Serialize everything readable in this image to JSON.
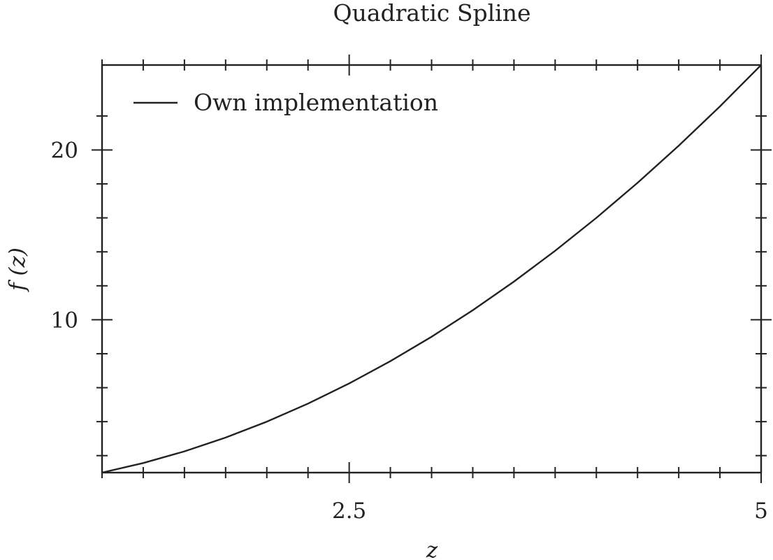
{
  "chart_data": {
    "type": "line",
    "title": "Quadratic Spline",
    "xlabel": "z",
    "ylabel": "f (z)",
    "xlim": [
      1,
      5
    ],
    "ylim": [
      1,
      25
    ],
    "xticks": [
      2.5,
      5
    ],
    "xtick_labels": [
      "2.5",
      "5"
    ],
    "yticks": [
      10,
      20
    ],
    "ytick_labels": [
      "10",
      "20"
    ],
    "x_minor_step": 0.25,
    "y_minor_step": 2,
    "grid": false,
    "legend_position": "top-left",
    "series": [
      {
        "name": "Own implementation",
        "color": "#222222",
        "x": [
          1.0,
          1.25,
          1.5,
          1.75,
          2.0,
          2.25,
          2.5,
          2.75,
          3.0,
          3.25,
          3.5,
          3.75,
          4.0,
          4.25,
          4.5,
          4.75,
          5.0
        ],
        "y": [
          1.0,
          1.5625,
          2.25,
          3.0625,
          4.0,
          5.0625,
          6.25,
          7.5625,
          9.0,
          10.5625,
          12.25,
          14.0625,
          16.0,
          18.0625,
          20.25,
          22.5625,
          25.0
        ]
      }
    ]
  }
}
